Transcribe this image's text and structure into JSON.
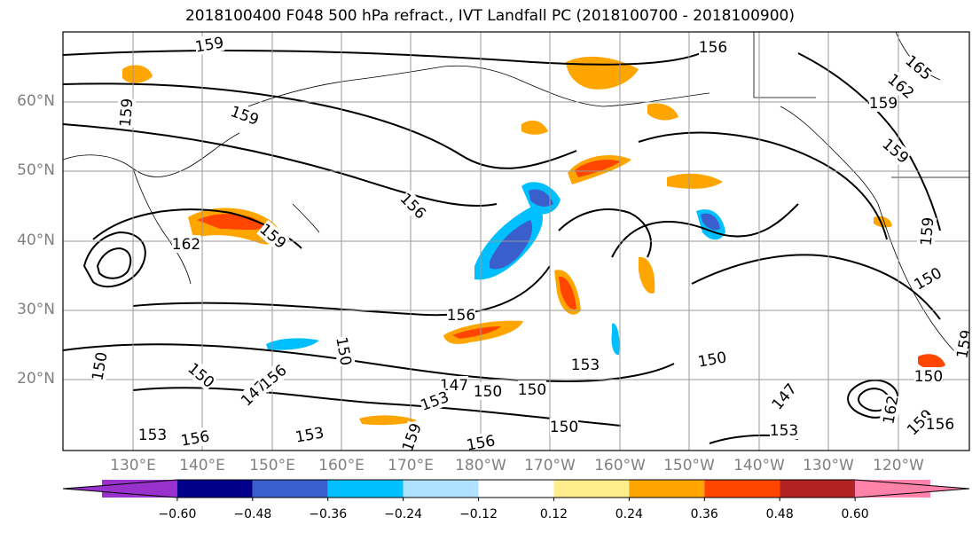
{
  "title": "2018100400 F048 500 hPa refract., IVT Landfall PC (2018100700 - 2018100900)",
  "lat_ticks": [
    "60°N",
    "50°N",
    "40°N",
    "30°N",
    "20°N"
  ],
  "lon_ticks": [
    "130°E",
    "140°E",
    "150°E",
    "160°E",
    "170°E",
    "180°W",
    "170°W",
    "160°W",
    "150°W",
    "140°W",
    "130°W",
    "120°W"
  ],
  "colorbar": {
    "colors": [
      "#9932cc",
      "#00008b",
      "#3a5fcd",
      "#00bfff",
      "#b0e2ff",
      "#ffffff",
      "#ffec8b",
      "#ffa500",
      "#ff4500",
      "#b22222",
      "#ff82ab"
    ],
    "labels": [
      "−0.60",
      "−0.48",
      "−0.36",
      "−0.24",
      "−0.12",
      "0.12",
      "0.24",
      "0.36",
      "0.48",
      "0.60"
    ]
  },
  "contour_labels": [
    "159",
    "156",
    "159",
    "159",
    "159",
    "156",
    "162",
    "159",
    "156",
    "150",
    "147",
    "150",
    "150",
    "153",
    "150",
    "150",
    "147",
    "156",
    "153",
    "156",
    "153",
    "156",
    "159",
    "150",
    "153",
    "147",
    "162",
    "159",
    "156",
    "150",
    "159",
    "165",
    "162",
    "159",
    "159",
    "150",
    "153",
    "150"
  ]
}
